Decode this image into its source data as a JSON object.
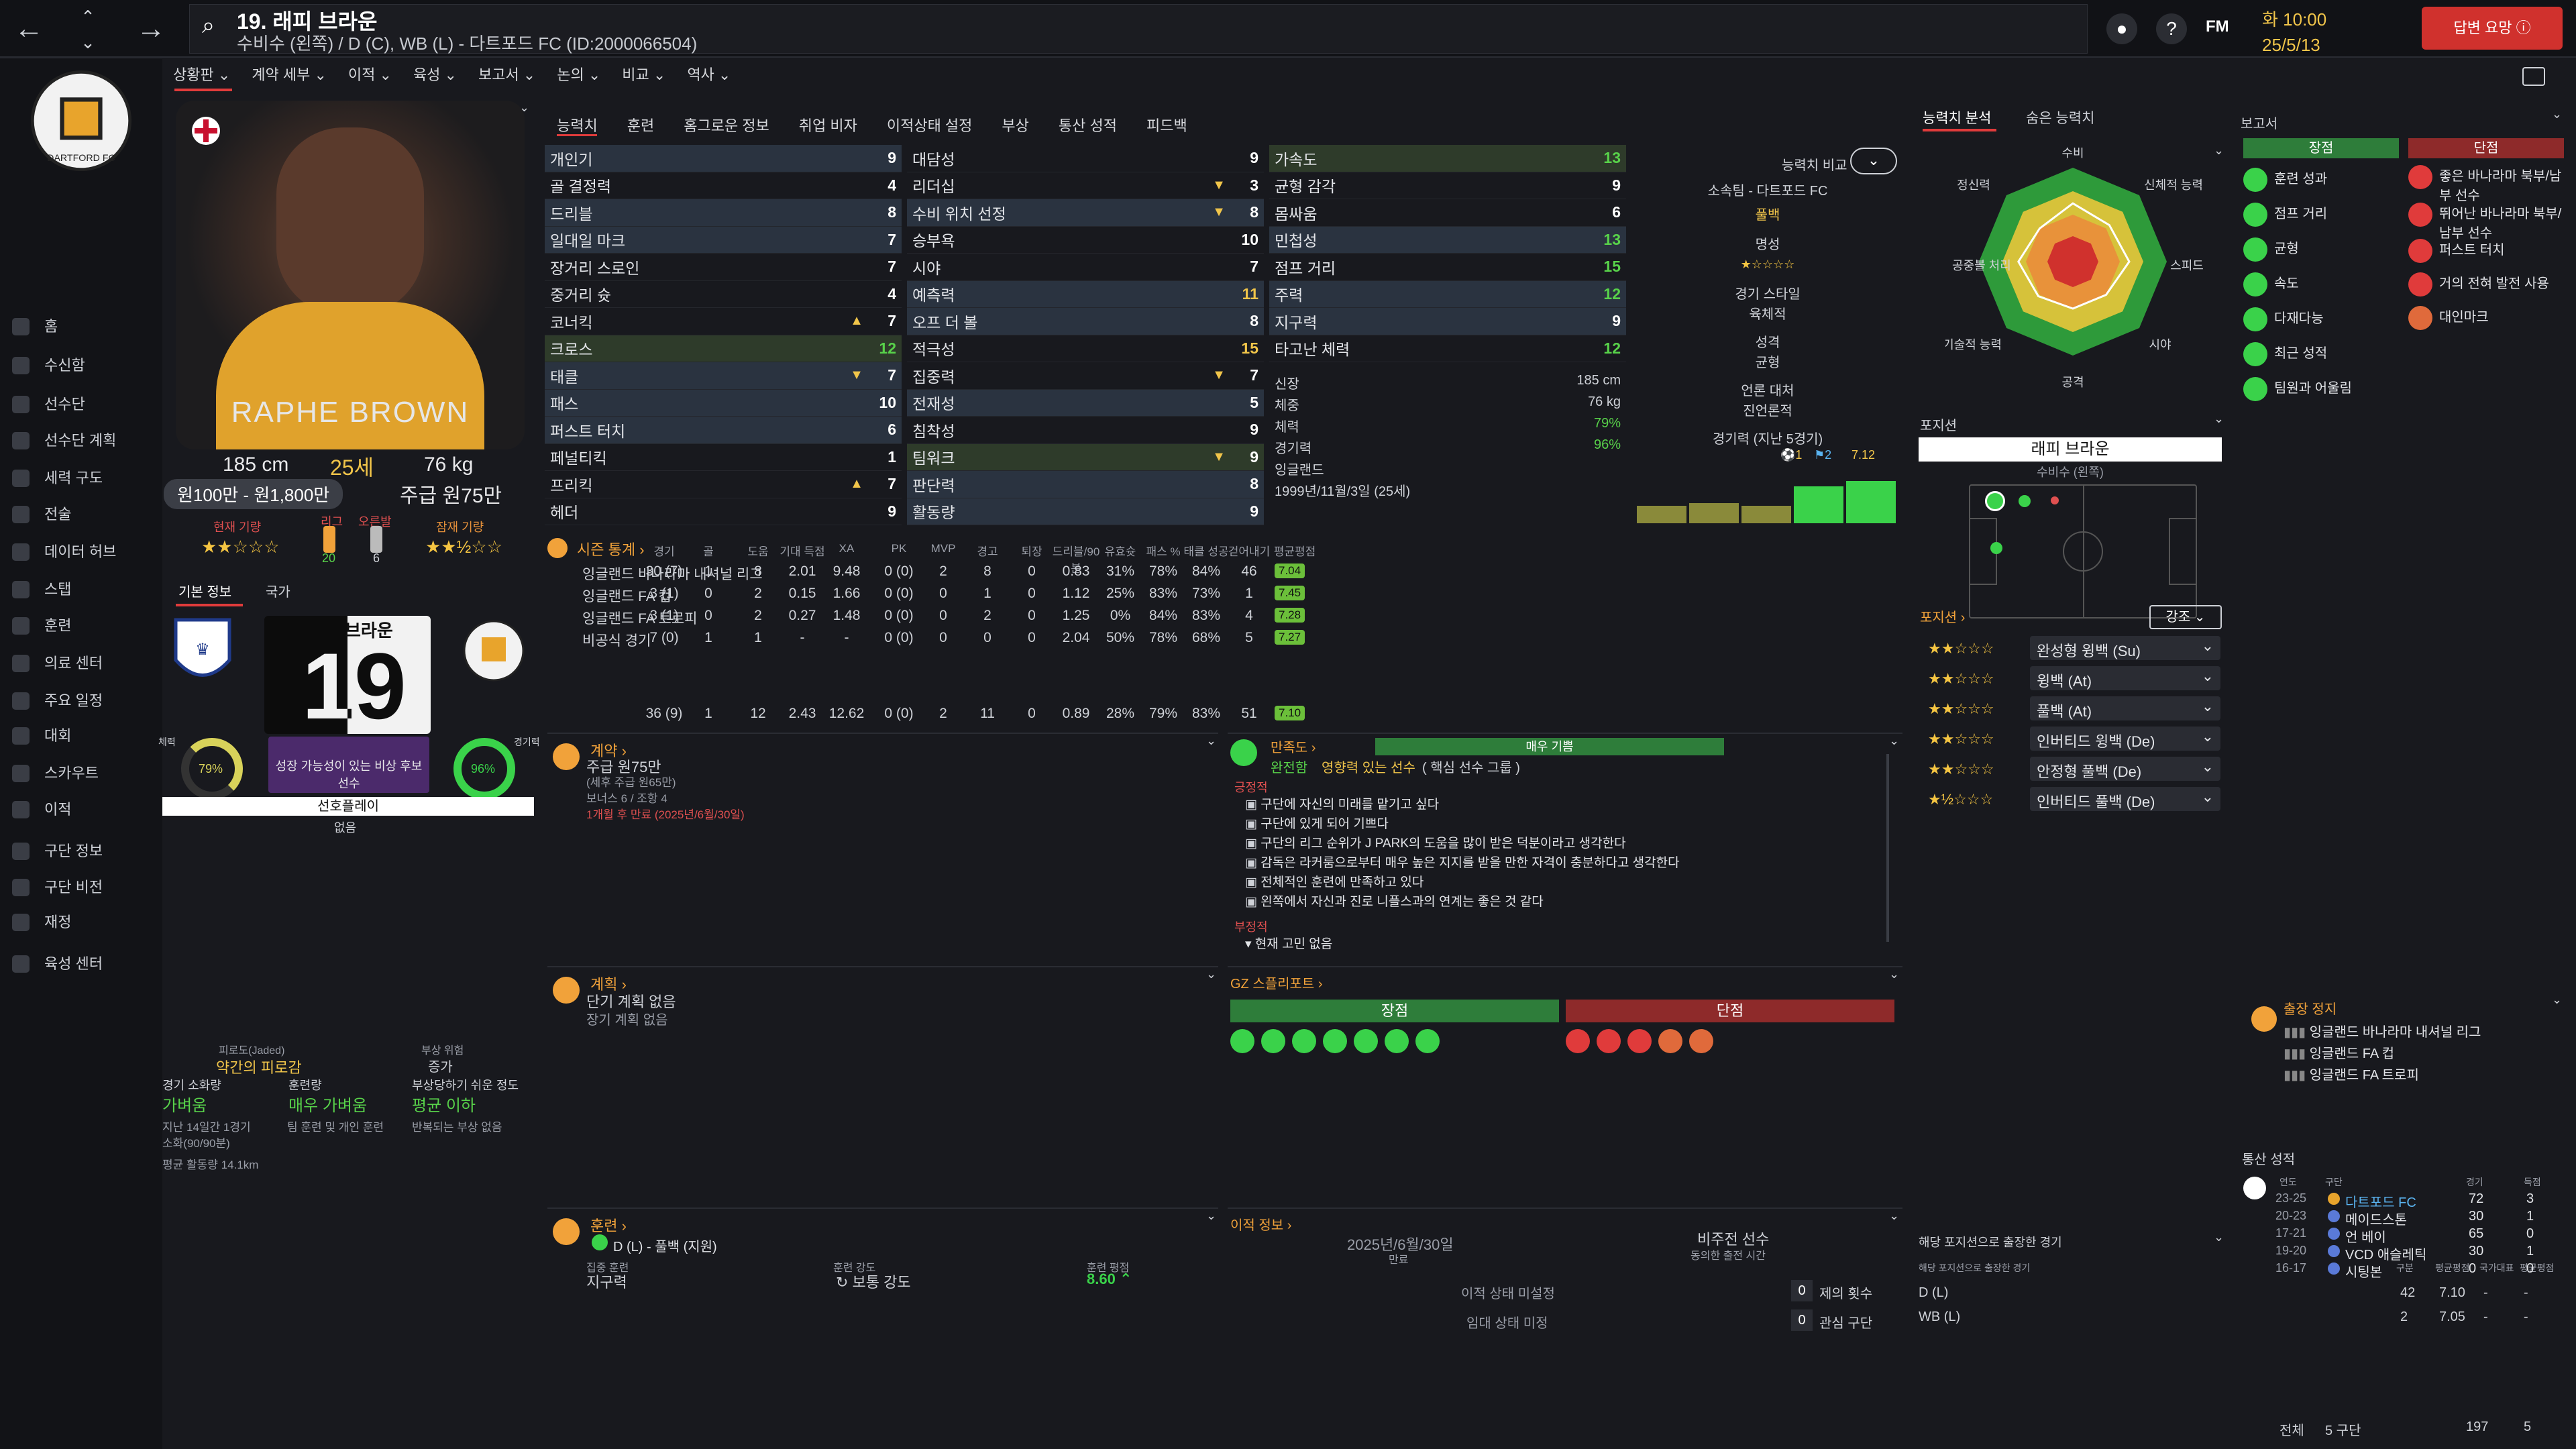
{
  "header": {
    "title": "19. 래피 브라운",
    "subtitle": "수비수 (왼쪽) / D (C), WB (L) - 다트포드 FC (ID:2000066504)",
    "fm_label": "FM",
    "time": "화 10:00",
    "date": "25/5/13",
    "continue_label": "답변 요망"
  },
  "sidebar": {
    "items": [
      "홈",
      "수신함",
      "선수단",
      "선수단 계획",
      "세력 구도",
      "전술",
      "데이터 허브",
      "스탭",
      "훈련",
      "의료 센터",
      "주요 일정",
      "대회",
      "스카우트",
      "이적",
      "구단 정보",
      "구단 비전",
      "재정",
      "육성 센터"
    ]
  },
  "subnav": [
    "상황판",
    "계약 세부",
    "이적",
    "육성",
    "보고서",
    "논의",
    "비교",
    "역사"
  ],
  "profile": {
    "photo_name": "RAPHE BROWN",
    "height": "185 cm",
    "age": "25세",
    "weight": "76 kg",
    "value": "원100만 - 원1,800만",
    "wage": "주급 원75만",
    "current_ability_label": "현재 기량",
    "current_stars": "★★☆☆☆",
    "potential_label": "잠재 기량",
    "potential_stars": "★★½☆☆",
    "league_label": "리그",
    "league_value": "20",
    "foot_label": "오른발",
    "foot_value": "6",
    "tabs": [
      "기본 정보",
      "국가"
    ],
    "shirt_name": "브라운",
    "shirt_number": "19",
    "fitness_label": "체력",
    "fitness_value": "79%",
    "match_label": "경기력",
    "match_value": "96%",
    "personality": "성장 가능성이 있는 비상 후보 선수",
    "preferred_play_label": "선호플레이",
    "preferred_play_value": "없음"
  },
  "fatigue": {
    "label": "피로도(Jaded)",
    "value": "약간의 피로감",
    "injury_label": "부상 위험",
    "injury_value": "증가",
    "load_label": "경기 소화량",
    "load_value": "가벼움",
    "training_label": "훈련량",
    "training_value": "매우 가벼움",
    "prone_label": "부상당하기 쉬운 정도",
    "prone_value": "평균 이하",
    "note1": "지난 14일간 1경기",
    "note2": "소화(90/90분)",
    "note3": "팀 훈련 및 개인 훈련",
    "note4": "반복되는 부상 없음",
    "note5": "평균 활동량 14.1km"
  },
  "attr_tabs": [
    "능력치",
    "훈련",
    "홈그로운 정보",
    "취업 비자",
    "이적상태 설정",
    "부상",
    "통산 성적",
    "피드백"
  ],
  "attributes": {
    "technical": [
      {
        "n": "개인기",
        "v": "9",
        "s": "hl"
      },
      {
        "n": "골 결정력",
        "v": "4"
      },
      {
        "n": "드리블",
        "v": "8",
        "s": "hl"
      },
      {
        "n": "일대일 마크",
        "v": "7",
        "s": "hl"
      },
      {
        "n": "장거리 스로인",
        "v": "7"
      },
      {
        "n": "중거리 슛",
        "v": "4"
      },
      {
        "n": "코너킥",
        "v": "7",
        "a": "▲"
      },
      {
        "n": "크로스",
        "v": "12",
        "s": "green",
        "c": "g"
      },
      {
        "n": "태클",
        "v": "7",
        "s": "hl",
        "a": "▼"
      },
      {
        "n": "패스",
        "v": "10",
        "s": "hl"
      },
      {
        "n": "퍼스트 터치",
        "v": "6",
        "s": "hl"
      },
      {
        "n": "페널티킥",
        "v": "1"
      },
      {
        "n": "프리킥",
        "v": "7",
        "a": "▲"
      },
      {
        "n": "헤더",
        "v": "9"
      }
    ],
    "mental": [
      {
        "n": "대담성",
        "v": "9"
      },
      {
        "n": "리더십",
        "v": "3",
        "a": "▼"
      },
      {
        "n": "수비 위치 선정",
        "v": "8",
        "s": "hl",
        "a": "▼"
      },
      {
        "n": "승부욕",
        "v": "10"
      },
      {
        "n": "시야",
        "v": "7"
      },
      {
        "n": "예측력",
        "v": "11",
        "s": "hl",
        "c": "y"
      },
      {
        "n": "오프 더 볼",
        "v": "8",
        "s": "hl"
      },
      {
        "n": "적극성",
        "v": "15",
        "c": "y"
      },
      {
        "n": "집중력",
        "v": "7",
        "a": "▼"
      },
      {
        "n": "전재성",
        "v": "5",
        "s": "hl"
      },
      {
        "n": "침착성",
        "v": "9"
      },
      {
        "n": "팀워크",
        "v": "9",
        "s": "green",
        "a": "▼"
      },
      {
        "n": "판단력",
        "v": "8",
        "s": "hl"
      },
      {
        "n": "활동량",
        "v": "9",
        "s": "hl"
      }
    ],
    "physical": [
      {
        "n": "가속도",
        "v": "13",
        "s": "green",
        "c": "g"
      },
      {
        "n": "균형 감각",
        "v": "9"
      },
      {
        "n": "몸싸움",
        "v": "6"
      },
      {
        "n": "민첩성",
        "v": "13",
        "s": "hl",
        "c": "g"
      },
      {
        "n": "점프 거리",
        "v": "15",
        "c": "g"
      },
      {
        "n": "주력",
        "v": "12",
        "s": "hl",
        "c": "g"
      },
      {
        "n": "지구력",
        "v": "9",
        "s": "hl"
      },
      {
        "n": "타고난 체력",
        "v": "12",
        "c": "g"
      }
    ],
    "extra": [
      {
        "k": "신장",
        "v": "185 cm"
      },
      {
        "k": "체중",
        "v": "76 kg"
      },
      {
        "k": "체력",
        "v": "79%"
      },
      {
        "k": "경기력",
        "v": "96%"
      },
      {
        "k": "국적",
        "v": "잉글랜드"
      },
      {
        "k": "생년월일",
        "v": "1999년/11월/3일 (25세)"
      }
    ]
  },
  "compare": {
    "btn": "능력치 비교",
    "club": "소속팀 - 다트포드 FC",
    "role": "풀백",
    "rep_label": "명성",
    "style_label": "경기 스타일",
    "style_value": "육체적",
    "char_label": "성격",
    "char_value": "균형",
    "media_label": "언론 대처",
    "media_value": "진언론적",
    "last5_label": "경기력 (지난 5경기)",
    "last5_avg": "7.12",
    "last5_goals": "1",
    "last5_assists": "2",
    "last5": [
      6.7,
      6.8,
      6.7,
      7.5,
      7.7
    ]
  },
  "season": {
    "title": "시즌 통계",
    "headers": [
      "경기",
      "골",
      "도움",
      "기대 득점",
      "XA",
      "PK",
      "MVP",
      "경고",
      "퇴장",
      "드리블/90분",
      "유효슛",
      "패스 %",
      "태클 성공",
      "걷어내기",
      "평균평점"
    ],
    "rows": [
      {
        "comp": "잉글랜드 바나라마 내셔널 리그",
        "vals": [
          "30 (7)",
          "1",
          "8",
          "2.01",
          "9.48",
          "0 (0)",
          "2",
          "8",
          "0",
          "0.83",
          "31%",
          "78%",
          "84%",
          "46",
          "7.04"
        ]
      },
      {
        "comp": "잉글랜드 FA 컵",
        "vals": [
          "3 (1)",
          "0",
          "2",
          "0.15",
          "1.66",
          "0 (0)",
          "0",
          "1",
          "0",
          "1.12",
          "25%",
          "83%",
          "73%",
          "1",
          "7.45"
        ]
      },
      {
        "comp": "잉글랜드 FA 트로피",
        "vals": [
          "3 (1)",
          "0",
          "2",
          "0.27",
          "1.48",
          "0 (0)",
          "0",
          "2",
          "0",
          "1.25",
          "0%",
          "84%",
          "83%",
          "4",
          "7.28"
        ]
      },
      {
        "comp": "비공식 경기",
        "vals": [
          "7 (0)",
          "1",
          "1",
          "-",
          "-",
          "0 (0)",
          "0",
          "0",
          "0",
          "2.04",
          "50%",
          "78%",
          "68%",
          "5",
          "7.27"
        ]
      }
    ],
    "total": [
      "36 (9)",
      "1",
      "12",
      "2.43",
      "12.62",
      "0 (0)",
      "2",
      "11",
      "0",
      "0.89",
      "28%",
      "79%",
      "83%",
      "51",
      "7.10"
    ]
  },
  "contract": {
    "title": "계약",
    "wage": "주급 원75만",
    "wage_note": "(세후 주급 원65만)",
    "bonus": "보너스 6 / 조항 4",
    "expiry": "1개월 후 만료 (2025년/6월/30일)"
  },
  "happiness": {
    "title": "만족도",
    "bar": "매우 기쁨",
    "role": "완전함",
    "status": "영향력 있는 선수",
    "group": "( 핵심 선수 그룹 )",
    "pos_label": "긍정적",
    "pos": [
      "구단에 자신의 미래를 맡기고 싶다",
      "구단에 있게 되어 기쁘다",
      "구단의 리그 순위가 J PARK의 도움을 많이 받은 덕분이라고 생각한다",
      "감독은 라커룸으로부터 매우 높은 지지를 받을 만한 자격이 충분하다고 생각한다",
      "전체적인 훈련에 만족하고 있다",
      "왼쪽에서 자신과 진로 니플스과의 연계는 좋은 것 같다"
    ],
    "neg_label": "부정적",
    "neg": [
      "현재 고민 없음"
    ]
  },
  "plan": {
    "title": "계획",
    "line1": "단기 계획 없음",
    "line2": "장기 계획 없음"
  },
  "gz": {
    "title": "GZ 스플리포트",
    "pros": "장점",
    "cons": "단점"
  },
  "training": {
    "title": "훈련",
    "role": "D (L) - 풀백 (지원)",
    "focus_label": "집중 훈련",
    "focus_value": "지구력",
    "intensity_label": "훈련 강도",
    "intensity_value": "보통 강도",
    "rating_label": "훈련 평점",
    "rating_value": "8.60"
  },
  "transfer": {
    "title": "이적 정보",
    "date": "2025년/6월/30일",
    "date_label": "만료",
    "status": "비주전 선수",
    "status_note": "동의한 출전 시간",
    "line1": "이적 상태 미설정",
    "line2": "임대 상태 미정",
    "offers_label": "제의 횟수",
    "offers": "0",
    "interest_label": "관심 구단",
    "interest": "0"
  },
  "right": {
    "tabs": [
      "능력치 분석",
      "숨은 능력치"
    ],
    "radar_labels": [
      "수비",
      "신체적 능력",
      "스피드",
      "시야",
      "공격",
      "기술적 능력",
      "공중볼 처리",
      "정신력"
    ],
    "pos_title": "포지션",
    "pos_name": "래피 브라운",
    "pos_sub": "수비수 (왼쪽)",
    "roles_title": "포지션",
    "roles_btn": "강조",
    "roles": [
      {
        "stars": "★★☆☆☆",
        "name": "완성형 윙백 (Su)"
      },
      {
        "stars": "★★☆☆☆",
        "name": "윙백 (At)"
      },
      {
        "stars": "★★☆☆☆",
        "name": "풀백 (At)"
      },
      {
        "stars": "★★☆☆☆",
        "name": "인버티드 윙백 (De)"
      },
      {
        "stars": "★★☆☆☆",
        "name": "안정형 풀백 (De)"
      },
      {
        "stars": "★½☆☆☆",
        "name": "인버티드 풀백 (De)"
      }
    ],
    "played_title": "해당 포지션으로 출장한 경기",
    "played_sub": "해당 포지션으로 출장한 경기",
    "played_headers": [
      "구분",
      "평균평점",
      "국가대표",
      "평균평점"
    ],
    "played_rows": [
      {
        "p": "D (L)",
        "a": "42",
        "b": "7.10",
        "c": "-",
        "d": "-"
      },
      {
        "p": "WB (L)",
        "a": "2",
        "b": "7.05",
        "c": "-",
        "d": "-"
      }
    ]
  },
  "report": {
    "title": "보고서",
    "pros_label": "장점",
    "cons_label": "단점",
    "pros": [
      "훈련 성과",
      "점프 거리",
      "균형",
      "속도",
      "다재다능",
      "최근 성적",
      "팀원과 어울림"
    ],
    "cons": [
      "좋은 바나라마 북부/남부 선수",
      "뛰어난 바나라마 북부/남부 선수",
      "퍼스트 터치",
      "거의 전혀 발전 사용",
      "대인마크"
    ],
    "susp_title": "출장 정지",
    "susp": [
      "잉글랜드 바나라마 내셔널 리그",
      "잉글랜드 FA 컵",
      "잉글랜드 FA 트로피"
    ],
    "career_title": "통산 성적",
    "career_headers": [
      "연도",
      "구단",
      "경기",
      "득점"
    ],
    "career": [
      {
        "y": "23-25",
        "c": "다트포드 FC",
        "g": "72",
        "s": "3"
      },
      {
        "y": "20-23",
        "c": "메이드스톤",
        "g": "30",
        "s": "1"
      },
      {
        "y": "17-21",
        "c": "언 베이",
        "g": "65",
        "s": "0"
      },
      {
        "y": "19-20",
        "c": "VCD 애슬레틱",
        "g": "30",
        "s": "1"
      },
      {
        "y": "16-17",
        "c": "시팅본",
        "g": "0",
        "s": "0"
      }
    ],
    "total_label": "전체",
    "total_clubs": "5 구단",
    "total_games": "197",
    "total_goals": "5"
  },
  "colors": {
    "accent": "#f1c54a",
    "green": "#58d24a",
    "red": "#d0312d",
    "bg": "#18191e"
  }
}
